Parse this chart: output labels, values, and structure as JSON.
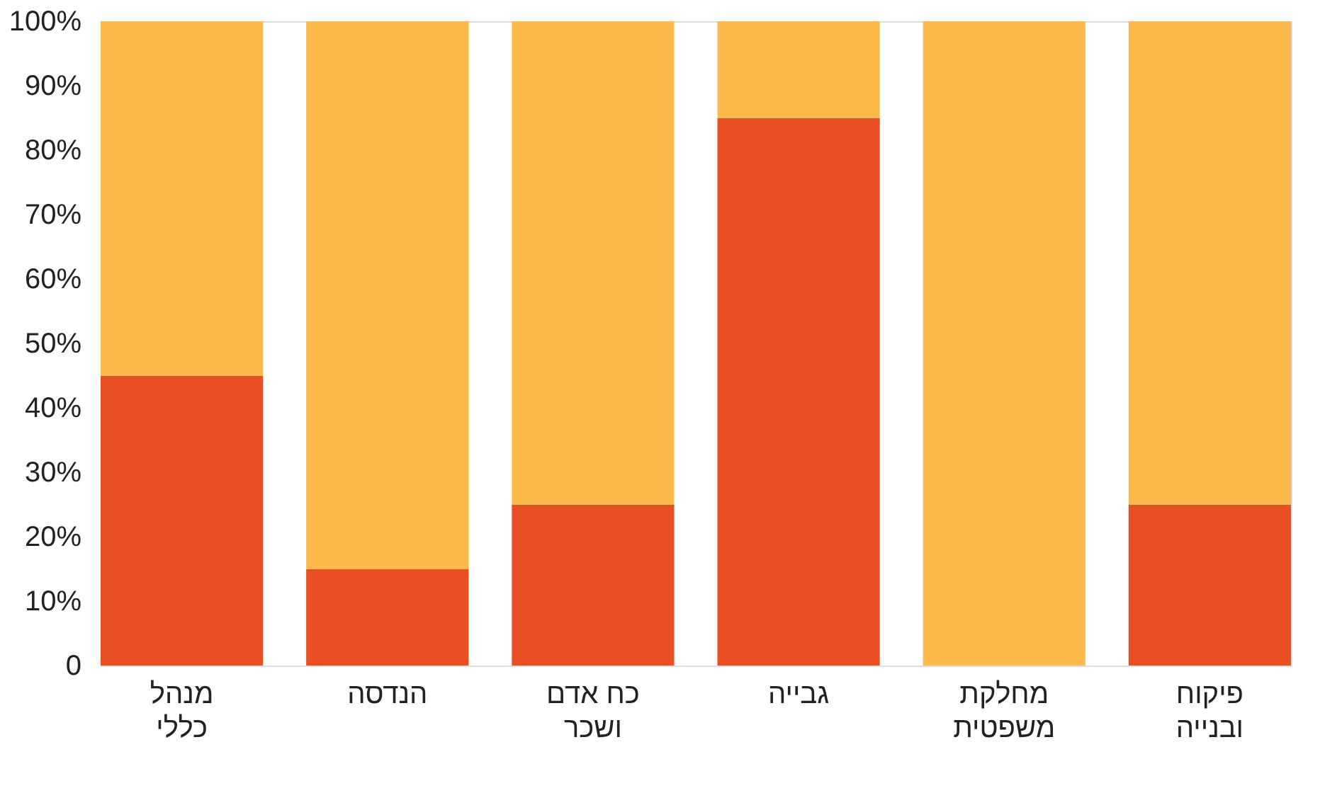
{
  "chart_data": {
    "type": "bar",
    "stacked": true,
    "categories": [
      "מנהל\nכללי",
      "הנדסה",
      "כח אדם\nושכר",
      "גבייה",
      "מחלקת\nמשפטית",
      "פיקוח\nובנייה"
    ],
    "series": [
      {
        "color": "#e84f22",
        "values": [
          45,
          15,
          25,
          85,
          0,
          25
        ]
      },
      {
        "color": "#fdb94a",
        "values": [
          55,
          85,
          75,
          15,
          100,
          75
        ]
      }
    ],
    "ylim": [
      0,
      100
    ],
    "yticks": [
      {
        "value": 0,
        "label": "0"
      },
      {
        "value": 10,
        "label": "10%"
      },
      {
        "value": 20,
        "label": "20%"
      },
      {
        "value": 30,
        "label": "30%"
      },
      {
        "value": 40,
        "label": "40%"
      },
      {
        "value": 50,
        "label": "50%"
      },
      {
        "value": 60,
        "label": "60%"
      },
      {
        "value": 70,
        "label": "70%"
      },
      {
        "value": 80,
        "label": "80%"
      },
      {
        "value": 90,
        "label": "90%"
      },
      {
        "value": 100,
        "label": "100%"
      }
    ],
    "grid": false,
    "legend": false
  }
}
